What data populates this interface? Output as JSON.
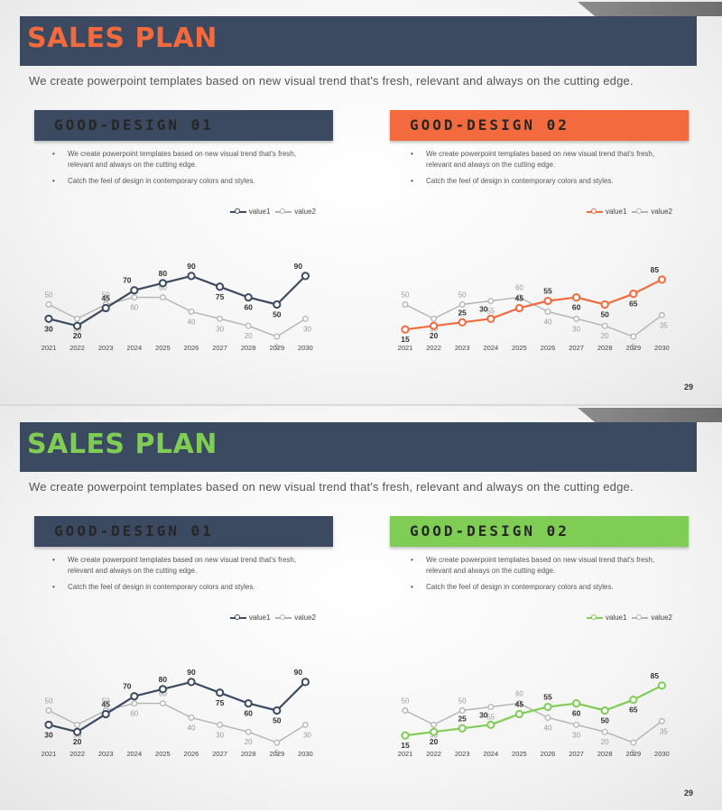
{
  "slides": [
    {
      "title": "SALES PLAN",
      "subtitle": "We create powerpoint templates based on new visual trend that's fresh, relevant and always on the cutting edge.",
      "page_number": "29",
      "colors": {
        "title": "#f26a3d",
        "accent": "#f26a3d"
      },
      "panels": [
        {
          "title": "GOOD-DESIGN 01",
          "bullets": [
            "We create powerpoint templates based on new visual trend that's fresh, relevant and always on the cutting edge.",
            "Catch the feel of design in contemporary colors and styles."
          ]
        },
        {
          "title": "GOOD-DESIGN 02",
          "bullets": [
            "We create powerpoint templates based on new visual trend that's fresh, relevant and always on the cutting edge.",
            "Catch the feel of design in contemporary colors and styles."
          ]
        }
      ]
    },
    {
      "title": "SALES PLAN",
      "subtitle": "We create powerpoint templates based on new visual trend that's fresh, relevant and always on the cutting edge.",
      "page_number": "29",
      "colors": {
        "title": "#7fcd55",
        "accent": "#7fcd55"
      },
      "panels": [
        {
          "title": "GOOD-DESIGN 01",
          "bullets": [
            "We create powerpoint templates based on new visual trend that's fresh, relevant and always on the cutting edge.",
            "Catch the feel of design in contemporary colors and styles."
          ]
        },
        {
          "title": "GOOD-DESIGN 02",
          "bullets": [
            "We create powerpoint templates based on new visual trend that's fresh, relevant and always on the cutting edge.",
            "Catch the feel of design in contemporary colors and styles."
          ]
        }
      ]
    }
  ],
  "colors": {
    "dark": "#3b4a60",
    "gray": "#b3b3b3",
    "orange": "#f26a3d",
    "green": "#7fcd55"
  },
  "chart_data": [
    {
      "type": "line",
      "slide": 1,
      "panel": 1,
      "categories": [
        "2021",
        "2022",
        "2023",
        "2024",
        "2025",
        "2026",
        "2027",
        "2028",
        "2029",
        "2030"
      ],
      "series": [
        {
          "name": "value1",
          "values": [
            30,
            20,
            45,
            70,
            80,
            90,
            75,
            60,
            50,
            90
          ],
          "color": "#3b4a60"
        },
        {
          "name": "value2",
          "values": [
            50,
            30,
            50,
            60,
            60,
            40,
            30,
            20,
            5,
            30
          ],
          "color": "#b3b3b3"
        }
      ],
      "ylim": [
        0,
        100
      ],
      "legend": "top-right"
    },
    {
      "type": "line",
      "slide": 1,
      "panel": 2,
      "categories": [
        "2021",
        "2022",
        "2023",
        "2024",
        "2025",
        "2026",
        "2027",
        "2028",
        "2029",
        "2030"
      ],
      "series": [
        {
          "name": "value1",
          "values": [
            15,
            20,
            25,
            30,
            45,
            55,
            60,
            50,
            65,
            85
          ],
          "color": "#f26a3d"
        },
        {
          "name": "value2",
          "values": [
            50,
            30,
            50,
            55,
            60,
            40,
            30,
            20,
            5,
            35
          ],
          "color": "#b3b3b3"
        }
      ],
      "ylim": [
        0,
        100
      ],
      "legend": "top-right"
    },
    {
      "type": "line",
      "slide": 2,
      "panel": 1,
      "categories": [
        "2021",
        "2022",
        "2023",
        "2024",
        "2025",
        "2026",
        "2027",
        "2028",
        "2029",
        "2030"
      ],
      "series": [
        {
          "name": "value1",
          "values": [
            30,
            20,
            45,
            70,
            80,
            90,
            75,
            60,
            50,
            90
          ],
          "color": "#3b4a60"
        },
        {
          "name": "value2",
          "values": [
            50,
            30,
            50,
            60,
            60,
            40,
            30,
            20,
            5,
            30
          ],
          "color": "#b3b3b3"
        }
      ],
      "ylim": [
        0,
        100
      ],
      "legend": "top-right"
    },
    {
      "type": "line",
      "slide": 2,
      "panel": 2,
      "categories": [
        "2021",
        "2022",
        "2023",
        "2024",
        "2025",
        "2026",
        "2027",
        "2028",
        "2029",
        "2030"
      ],
      "series": [
        {
          "name": "value1",
          "values": [
            15,
            20,
            25,
            30,
            45,
            55,
            60,
            50,
            65,
            85
          ],
          "color": "#7fcd55"
        },
        {
          "name": "value2",
          "values": [
            50,
            30,
            50,
            55,
            60,
            40,
            30,
            20,
            5,
            35
          ],
          "color": "#b3b3b3"
        }
      ],
      "ylim": [
        0,
        100
      ],
      "legend": "top-right"
    }
  ]
}
